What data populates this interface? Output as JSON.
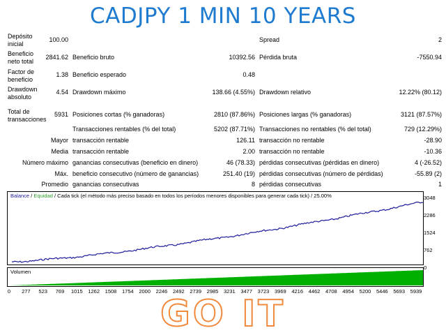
{
  "banner": {
    "title": "CADJPY 1 MIN 10 YEARS"
  },
  "stats": {
    "deposit_label": "Depósito inicial",
    "deposit_value": "100.00",
    "spread_label": "Spread",
    "spread_value": "2",
    "net_profit_label": "Beneficio neto total",
    "net_profit_value": "2841.62",
    "gross_profit_label": "Beneficio bruto",
    "gross_profit_value": "10392.56",
    "gross_loss_label": "Pérdida bruta",
    "gross_loss_value": "-7550.94",
    "profit_factor_label": "Factor de beneficio",
    "profit_factor_value": "1.38",
    "expected_payoff_label": "Beneficio esperado",
    "expected_payoff_value": "0.48",
    "abs_drawdown_label": "Drawdown absoluto",
    "abs_drawdown_value": "4.54",
    "max_drawdown_label": "Drawdown máximo",
    "max_drawdown_value": "138.66 (4.55%)",
    "rel_drawdown_label": "Drawdown relativo",
    "rel_drawdown_value": "12.22% (80.12)",
    "total_trades_label": "Total de transacciones",
    "total_trades_value": "5931",
    "short_label": "Posiciones cortas (% ganadoras)",
    "short_value": "2810 (87.86%)",
    "long_label": "Posiciones largas (% ganadoras)",
    "long_value": "3121 (87.57%)",
    "profit_trades_label": "Transacciones rentables (% del total)",
    "profit_trades_value": "5202 (87.71%)",
    "loss_trades_label": "Transacciones no rentables (% del total)",
    "loss_trades_value": "729 (12.29%)",
    "largest_prefix": "Mayor",
    "largest_profit_label": "transacción rentable",
    "largest_profit_value": "126.11",
    "largest_loss_label": "transacción no rentable",
    "largest_loss_value": "-28.90",
    "average_prefix": "Media",
    "average_profit_label": "transacción rentable",
    "average_profit_value": "2.00",
    "average_loss_label": "transacción no rentable",
    "average_loss_value": "-10.36",
    "maxnum_prefix": "Número máximo",
    "max_consec_wins_label": "ganancias consecutivas (beneficio en dinero)",
    "max_consec_wins_value": "46 (78.33)",
    "max_consec_losses_label": "pérdidas consecutivas (pérdidas en dinero)",
    "max_consec_losses_value": "4 (-26.52)",
    "max_prefix": "Máx.",
    "max_consec_profit_label": "beneficio consecutivo (número de ganancias)",
    "max_consec_profit_value": "251.40 (19)",
    "max_consec_loss_label": "pérdidas consecutivas (número de pérdidas)",
    "max_consec_loss_value": "-55.89 (2)",
    "avg_prefix": "Promedio",
    "avg_consec_wins_label": "ganancias consecutivas",
    "avg_consec_wins_value": "8",
    "avg_consec_losses_label": "pérdidas consecutivas",
    "avg_consec_losses_value": "1"
  },
  "chart": {
    "legend_balance": "Balance",
    "legend_sep": "/",
    "legend_equity": "Equidad",
    "legend_rest": "/ Cada tick (el método más preciso basado en todos los períodos menores disponibles para generar cada tick) / 25.00%",
    "balance_color": "#1b1b9a",
    "equity_color": "#2fa02f",
    "y_ticks": [
      "3048",
      "2286",
      "1524",
      "762",
      "0"
    ],
    "x_ticks": [
      "0",
      "277",
      "523",
      "769",
      "1015",
      "1262",
      "1508",
      "1754",
      "2000",
      "2246",
      "2492",
      "2739",
      "2985",
      "3231",
      "3477",
      "3723",
      "3969",
      "4216",
      "4462",
      "4708",
      "4954",
      "5200",
      "5446",
      "5693",
      "5939"
    ]
  },
  "volume": {
    "label": "Volumen",
    "color": "#00b000"
  },
  "footer": {
    "text": "GO IT",
    "color": "#f08a3e"
  }
}
